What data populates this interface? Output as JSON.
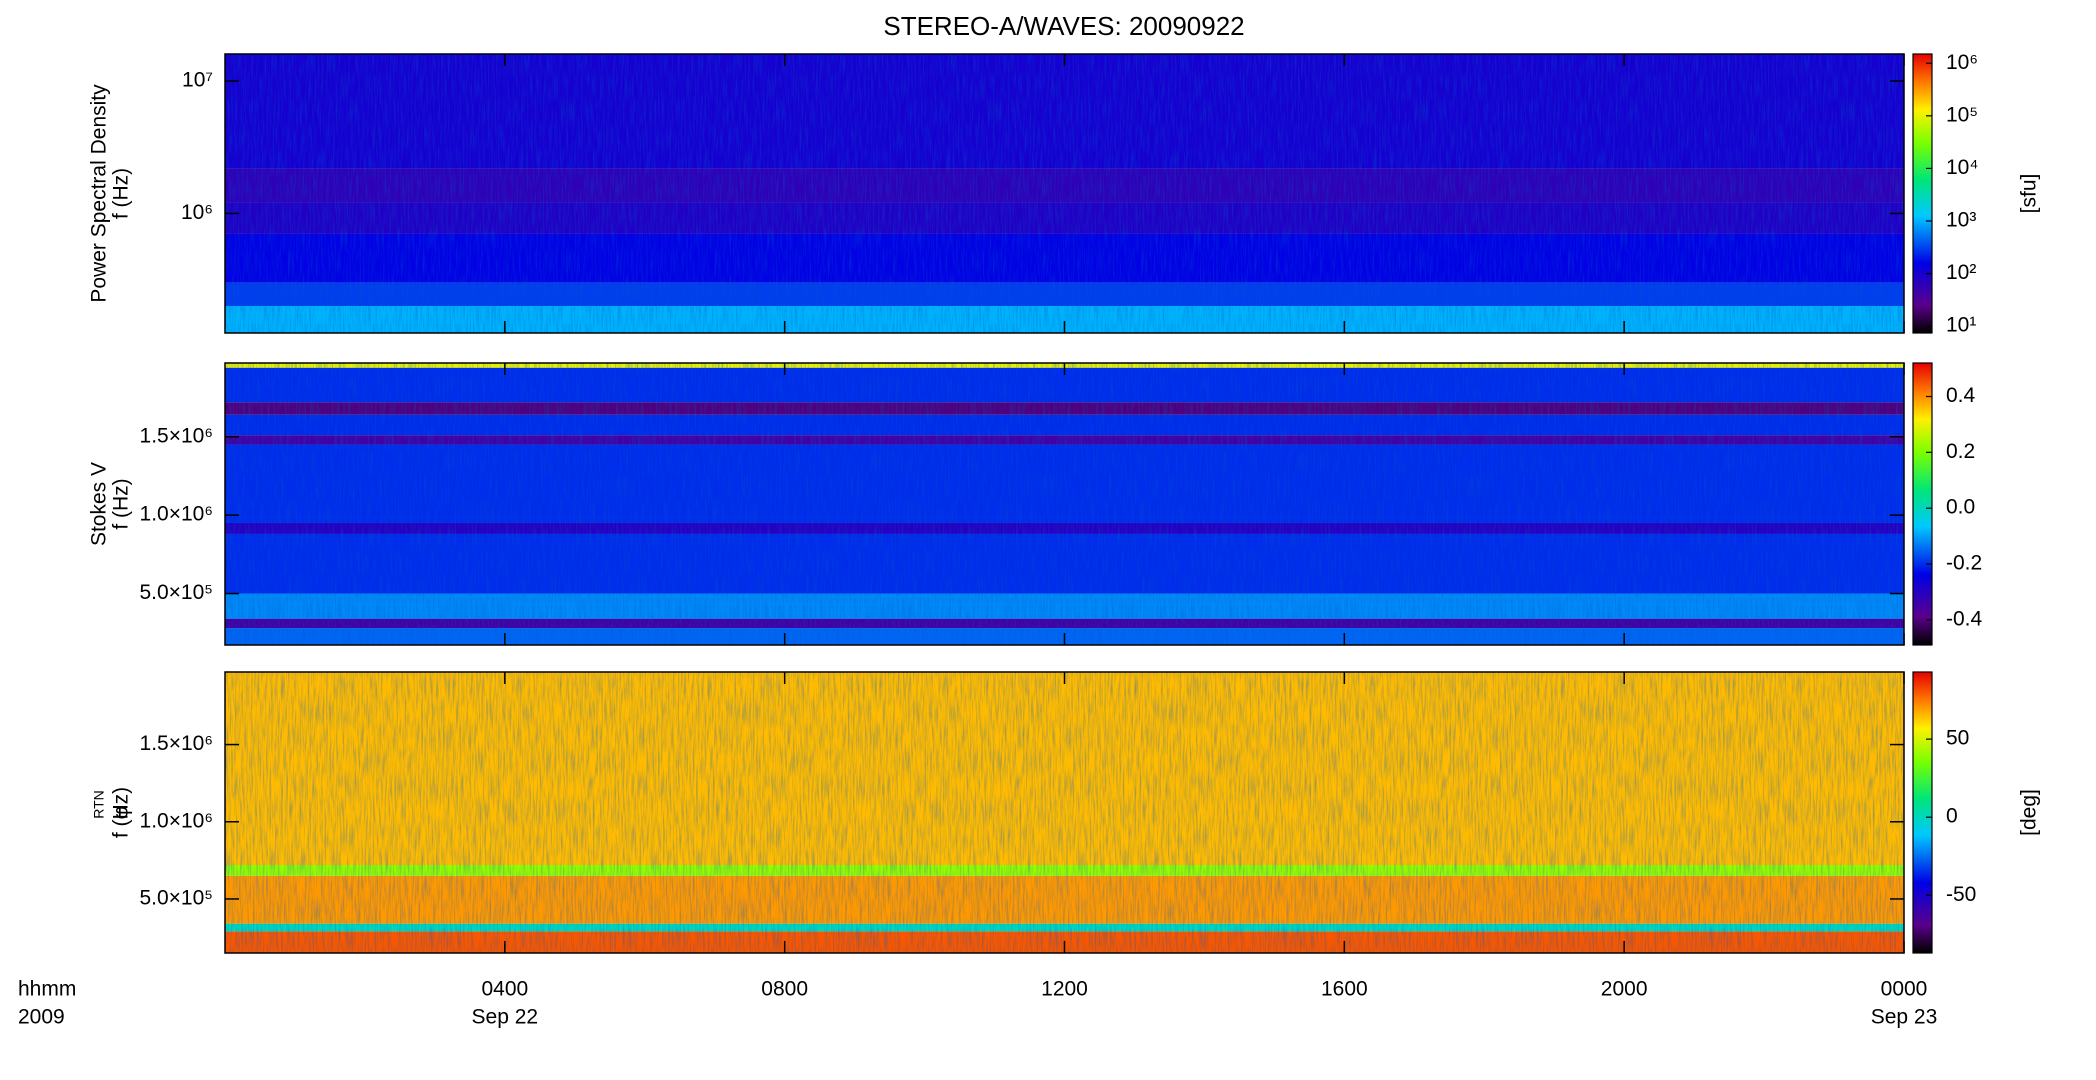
{
  "title": "STEREO-A/WAVES: 20090922",
  "x_axis": {
    "xlim": [
      0,
      24
    ],
    "xticks": [
      {
        "value": 4,
        "label": "0400"
      },
      {
        "value": 8,
        "label": "0800"
      },
      {
        "value": 12,
        "label": "1200"
      },
      {
        "value": 16,
        "label": "1600"
      },
      {
        "value": 20,
        "label": "2000"
      },
      {
        "value": 24,
        "label": "0000"
      }
    ],
    "date_ticks": [
      {
        "value": 4,
        "label": "Sep 22"
      },
      {
        "value": 24,
        "label": "Sep 23"
      }
    ],
    "unit_label": "hhmm",
    "year_label": "2009"
  },
  "chart_data": [
    {
      "type": "spectrogram",
      "ylabel": [
        "Power Spectral Density",
        "f (Hz)"
      ],
      "ylog": true,
      "ylim": [
        125000,
        16000000
      ],
      "yticks": [
        {
          "value": 1000000,
          "label": "10⁶"
        },
        {
          "value": 10000000,
          "label": "10⁷"
        }
      ],
      "ybins": [
        125000,
        200000,
        300000,
        700000,
        1200000,
        2200000,
        16000000
      ],
      "values": [
        1000,
        300,
        150,
        80,
        60,
        100
      ],
      "zlog": true,
      "zlim": [
        7.4,
        1500000
      ],
      "zlabel": "[sfu]",
      "zticks": [
        {
          "value": 10,
          "label": "10¹"
        },
        {
          "value": 100,
          "label": "10²"
        },
        {
          "value": 1000,
          "label": "10³"
        },
        {
          "value": 10000,
          "label": "10⁴"
        },
        {
          "value": 100000,
          "label": "10⁵"
        },
        {
          "value": 1000000,
          "label": "10⁶"
        }
      ]
    },
    {
      "type": "spectrogram",
      "ylabel": [
        "Stokes V",
        "f (Hz)"
      ],
      "ylog": false,
      "ylim": [
        172000,
        1970000
      ],
      "yticks": [
        {
          "value": 500000,
          "label": "5.0×10⁵"
        },
        {
          "value": 1000000,
          "label": "1.0×10⁶"
        },
        {
          "value": 1500000,
          "label": "1.5×10⁶"
        }
      ],
      "ybins": [
        172000,
        280000,
        340000,
        500000,
        880000,
        950000,
        1450000,
        1510000,
        1640000,
        1720000,
        1940000,
        1970000
      ],
      "values": [
        -0.15,
        -0.35,
        -0.12,
        -0.2,
        -0.3,
        -0.2,
        -0.35,
        -0.2,
        -0.4,
        -0.2,
        0.3
      ],
      "zlog": false,
      "zlim": [
        -0.49,
        0.52
      ],
      "zticks": [
        -0.4,
        -0.2,
        {
          "value": 0,
          "label": "0.0"
        },
        0.2,
        0.4
      ]
    },
    {
      "type": "spectrogram",
      "ylabel": [
        "f (Hz)"
      ],
      "ylabel_symbol": "φ",
      "ylabel_subscript": "RTN",
      "ylog": false,
      "ylim": [
        150000,
        1970000
      ],
      "yticks": [
        {
          "value": 500000,
          "label": "5.0×10⁵"
        },
        {
          "value": 1000000,
          "label": "1.0×10⁶"
        },
        {
          "value": 1500000,
          "label": "1.5×10⁶"
        }
      ],
      "ybins": [
        150000,
        290000,
        340000,
        650000,
        720000,
        1970000
      ],
      "values": [
        80,
        0,
        70,
        40,
        65
      ],
      "zlog": false,
      "zlim": [
        -87,
        93
      ],
      "zlabel": "[deg]",
      "zticks": [
        -50,
        0,
        50
      ]
    }
  ]
}
